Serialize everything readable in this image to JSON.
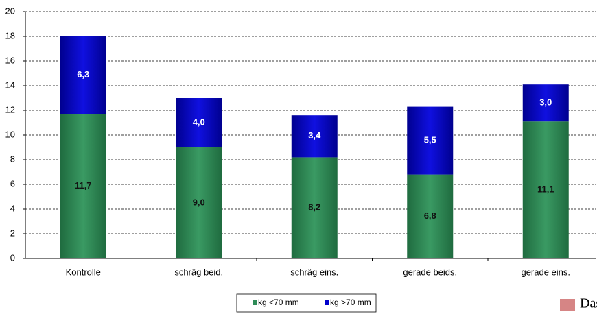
{
  "chart_data": {
    "type": "stacked_bar",
    "categories": [
      "Kontrolle",
      "schräg beid.",
      "schräg eins.",
      "gerade beids.",
      "gerade eins."
    ],
    "series": [
      {
        "name": "kg <70 mm",
        "color": "#2e8b57",
        "values": [
          11.7,
          9.0,
          8.2,
          6.8,
          11.1
        ],
        "value_labels": [
          "11,7",
          "9,0",
          "8,2",
          "6,8",
          "11,1"
        ]
      },
      {
        "name": "kg >70 mm",
        "color": "#0000cc",
        "values": [
          6.3,
          4.0,
          3.4,
          5.5,
          3.0
        ],
        "value_labels": [
          "6,3",
          "4,0",
          "3,4",
          "5,5",
          "3,0"
        ]
      }
    ],
    "ylim": [
      0,
      20
    ],
    "yticks": [
      0,
      2,
      4,
      6,
      8,
      10,
      12,
      14,
      16,
      18,
      20
    ],
    "grid": true,
    "legend": "bottom",
    "logo_text": "Das La"
  }
}
